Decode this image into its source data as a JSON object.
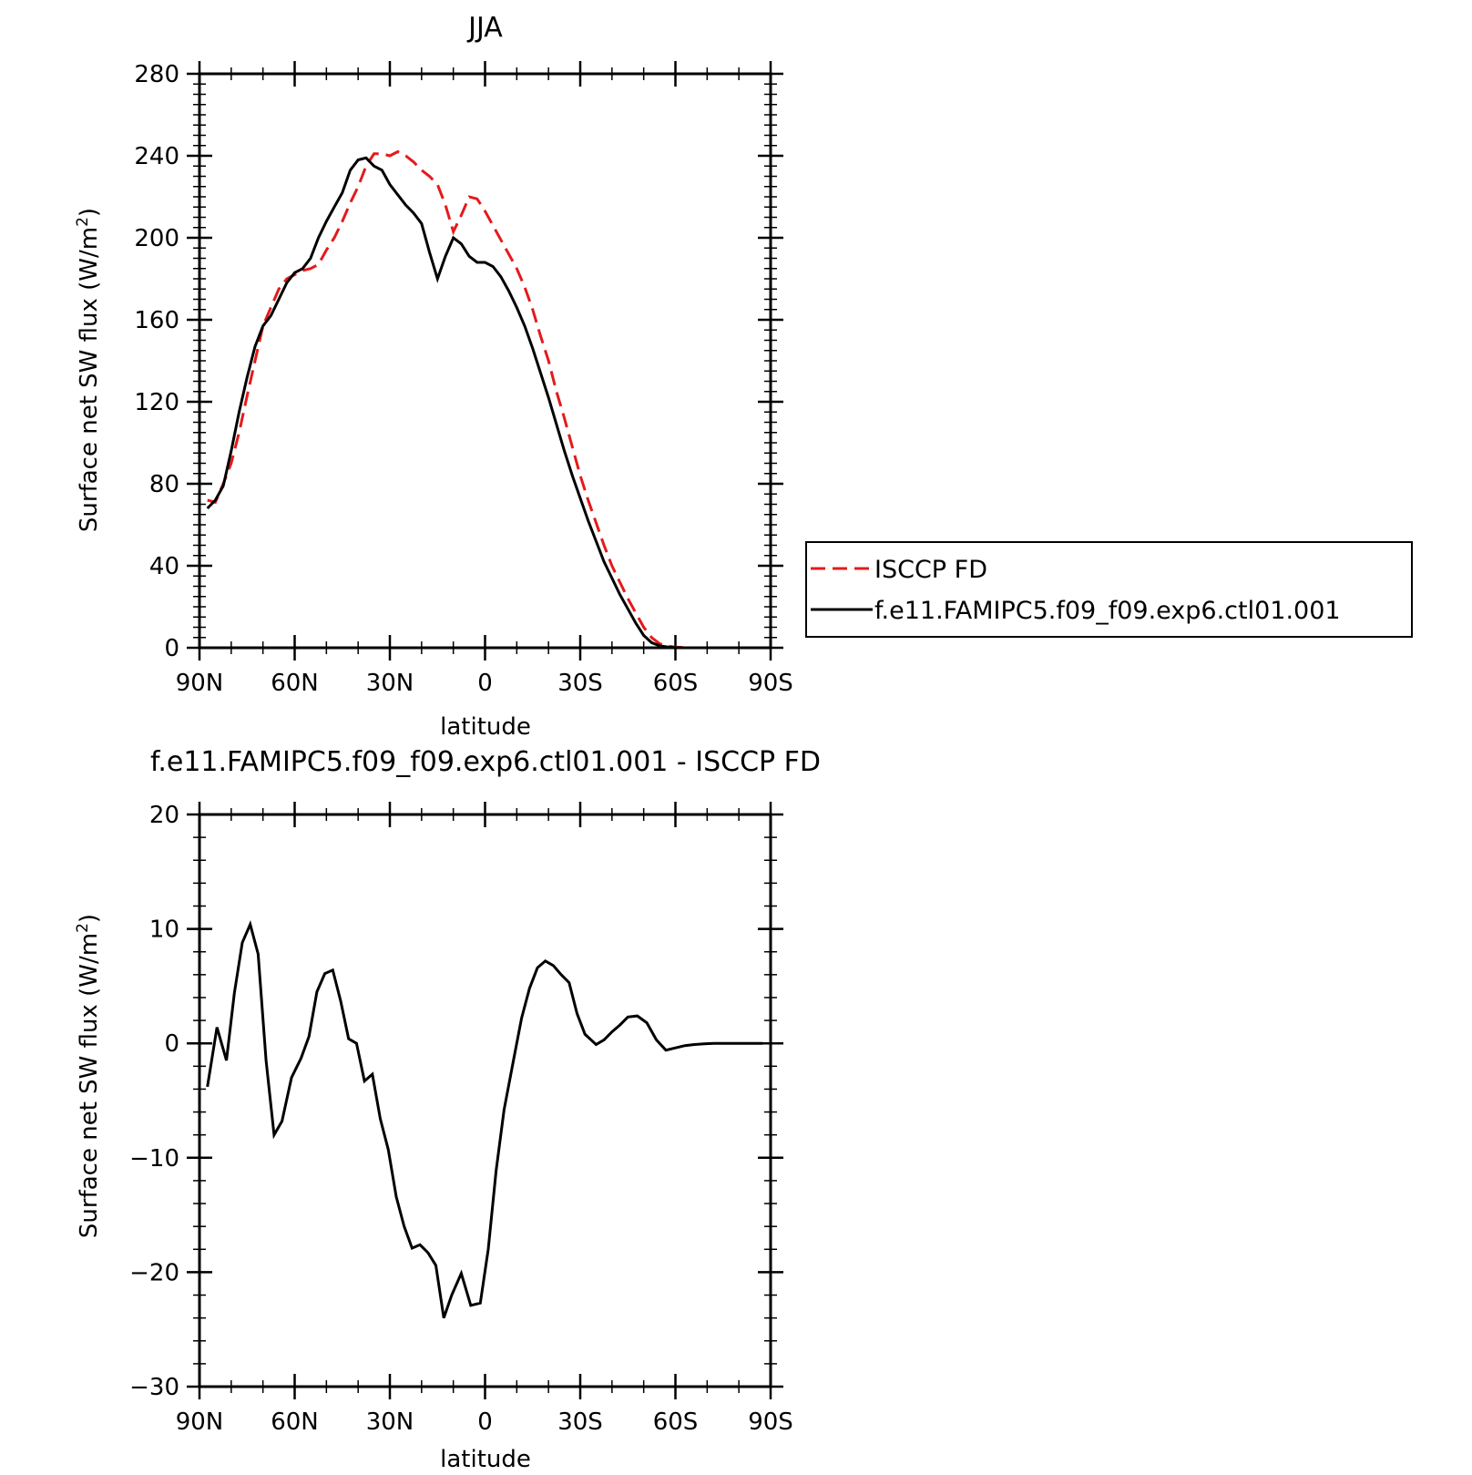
{
  "colors": {
    "model": "#000000",
    "obs": "#e41a1c",
    "axis": "#000000"
  },
  "chart_data": [
    {
      "type": "line",
      "title": "JJA",
      "xlabel": "latitude",
      "ylabel": "Surface net SW flux (W/m²)",
      "ylabel_main": "Surface net SW flux (W/m",
      "ylabel_sup": "2",
      "ylabel_end": ")",
      "xlim": [
        90,
        -90
      ],
      "ylim": [
        0,
        280
      ],
      "xticks": [
        90,
        60,
        30,
        0,
        -30,
        -60,
        -90
      ],
      "xtick_labels": [
        "90N",
        "60N",
        "30N",
        "0",
        "30S",
        "60S",
        "90S"
      ],
      "yticks": [
        0,
        40,
        80,
        120,
        160,
        200,
        240,
        280
      ],
      "ytick_labels": [
        "0",
        "40",
        "80",
        "120",
        "160",
        "200",
        "240",
        "280"
      ],
      "legend": {
        "placement": "right",
        "items": [
          "ISCCP FD",
          "f.e11.FAMIPC5.f09_f09.exp6.ctl01.001"
        ]
      },
      "series": [
        {
          "name": "ISCCP FD",
          "style": "dashed",
          "x": [
            87.5,
            85,
            82.5,
            80,
            77.5,
            75,
            72.5,
            70,
            67.5,
            65,
            62.5,
            60,
            57.5,
            55,
            52.5,
            50,
            47.5,
            45,
            42.5,
            40,
            37.5,
            35,
            32.5,
            30,
            27.5,
            25,
            22.5,
            20,
            17.5,
            15,
            12.5,
            10,
            7.5,
            5,
            2.5,
            0,
            -2.5,
            -5,
            -7.5,
            -10,
            -12.5,
            -15,
            -17.5,
            -20,
            -22.5,
            -25,
            -27.5,
            -30,
            -32.5,
            -35,
            -37.5,
            -40,
            -42.5,
            -45,
            -47.5,
            -50,
            -52.5,
            -55,
            -57.5,
            -60,
            -62.5,
            -65,
            -67.5,
            -70,
            -72.5,
            -75,
            -77.5,
            -80,
            -82.5,
            -85,
            -87.5
          ],
          "values": [
            72,
            71,
            80,
            90,
            105,
            123,
            140,
            157,
            166,
            175,
            180,
            182,
            184,
            185,
            187,
            194,
            200,
            208,
            217,
            225,
            235,
            241,
            241,
            240,
            242,
            240,
            237,
            233,
            230,
            226,
            216,
            203,
            211,
            220,
            219,
            213,
            206,
            199,
            192,
            185,
            176,
            165,
            152,
            140,
            125,
            112,
            98,
            84,
            72,
            61,
            50,
            40,
            32,
            24,
            17,
            10,
            5,
            2,
            0.8,
            0.3,
            0.1,
            0,
            0,
            0,
            0,
            0,
            0,
            0,
            0,
            0,
            0
          ]
        },
        {
          "name": "f.e11.FAMIPC5.f09_f09.exp6.ctl01.001",
          "style": "solid",
          "x": [
            87.5,
            85,
            82.5,
            80,
            77.5,
            75,
            72.5,
            70,
            67.5,
            65,
            62.5,
            60,
            57.5,
            55,
            52.5,
            50,
            47.5,
            45,
            42.5,
            40,
            37.5,
            35,
            32.5,
            30,
            27.5,
            25,
            22.5,
            20,
            17.5,
            15,
            12.5,
            10,
            7.5,
            5,
            2.5,
            0,
            -2.5,
            -5,
            -7.5,
            -10,
            -12.5,
            -15,
            -17.5,
            -20,
            -22.5,
            -25,
            -27.5,
            -30,
            -32.5,
            -35,
            -37.5,
            -40,
            -42.5,
            -45,
            -47.5,
            -50,
            -52.5,
            -55,
            -57.5,
            -60,
            -62.5,
            -65,
            -67.5,
            -70,
            -72.5,
            -75,
            -77.5,
            -80,
            -82.5,
            -85,
            -87.5
          ],
          "values": [
            68,
            72,
            79,
            96,
            115,
            132,
            147,
            157,
            162,
            170,
            178,
            183,
            185,
            190,
            200,
            208,
            215,
            222,
            233,
            238,
            239,
            235,
            233,
            226,
            221,
            216,
            212,
            207,
            193,
            180,
            191,
            200,
            197,
            191,
            188,
            188,
            186,
            181,
            174,
            166,
            157,
            146,
            134,
            122,
            109,
            96,
            84,
            73,
            62,
            52,
            42,
            34,
            26,
            19,
            12,
            6,
            2.5,
            1,
            0.4,
            0.1,
            0,
            0,
            0,
            0,
            0,
            0,
            0,
            0,
            0,
            0,
            0
          ]
        }
      ]
    },
    {
      "type": "line",
      "title": "f.e11.FAMIPC5.f09_f09.exp6.ctl01.001 - ISCCP FD",
      "xlabel": "latitude",
      "ylabel": "Surface net SW flux (W/m²)",
      "ylabel_main": "Surface net SW flux (W/m",
      "ylabel_sup": "2",
      "ylabel_end": ")",
      "xlim": [
        90,
        -90
      ],
      "ylim": [
        -30,
        20
      ],
      "xticks": [
        90,
        60,
        30,
        0,
        -30,
        -60,
        -90
      ],
      "xtick_labels": [
        "90N",
        "60N",
        "30N",
        "0",
        "30S",
        "60S",
        "90S"
      ],
      "yticks": [
        -30,
        -20,
        -10,
        0,
        10,
        20
      ],
      "ytick_labels": [
        "−30",
        "−20",
        "−10",
        "0",
        "10",
        "20"
      ],
      "series": [
        {
          "style": "solid",
          "x": [
            87.5,
            84.5,
            81.5,
            79,
            76.5,
            74,
            71.5,
            69,
            66.5,
            64,
            61,
            58,
            55.5,
            53,
            50.5,
            48,
            45.5,
            43,
            40.5,
            38,
            35.5,
            33,
            30.5,
            28,
            25.5,
            23,
            20.5,
            18,
            15.5,
            13,
            10.5,
            7.5,
            4.5,
            1.5,
            -1,
            -3.5,
            -6,
            -9,
            -11.5,
            -14,
            -16.5,
            -19,
            -21.5,
            -24,
            -26.5,
            -29,
            -31.5,
            -35,
            -37.5,
            -40,
            -42.5,
            -45,
            -48,
            -51,
            -54,
            -57,
            -60,
            -63,
            -66,
            -69,
            -72,
            -75,
            -78,
            -81,
            -84,
            -87.5
          ],
          "values": [
            -3.8,
            1.4,
            -1.5,
            4.4,
            8.8,
            10.4,
            7.8,
            -1.5,
            -8,
            -6.8,
            -3,
            -1.3,
            0.6,
            4.5,
            6.1,
            6.4,
            3.7,
            0.4,
            0,
            -3.3,
            -2.7,
            -6.6,
            -9.3,
            -13.4,
            -16,
            -17.9,
            -17.6,
            -18.3,
            -19.4,
            -24,
            -22,
            -20.1,
            -22.9,
            -22.7,
            -18,
            -11.1,
            -5.8,
            -1.4,
            2.2,
            4.8,
            6.6,
            7.2,
            6.8,
            6,
            5.3,
            2.6,
            0.8,
            -0.1,
            0.3,
            1,
            1.6,
            2.3,
            2.4,
            1.8,
            0.3,
            -0.6,
            -0.4,
            -0.2,
            -0.1,
            -0.05,
            0,
            0,
            0,
            0,
            0,
            0
          ]
        }
      ]
    }
  ]
}
